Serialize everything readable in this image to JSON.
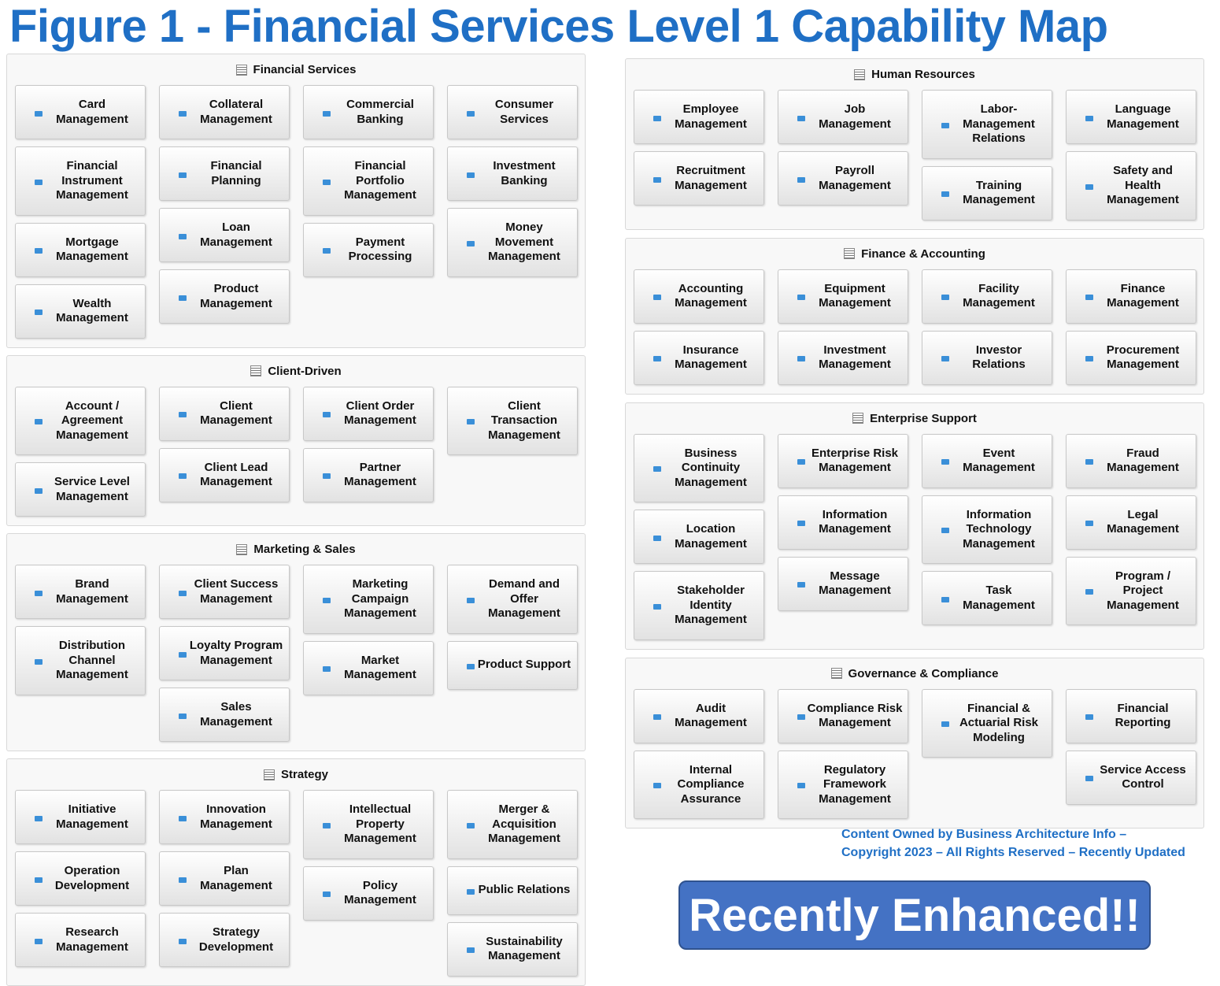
{
  "title": "Figure 1 - Financial Services Level 1 Capability Map",
  "left_groups": [
    {
      "title": "Financial Services",
      "columns": [
        [
          "Card\nManagement",
          "Financial\nInstrument\nManagement",
          "Mortgage\nManagement",
          "Wealth\nManagement"
        ],
        [
          "Collateral\nManagement",
          "Financial\nPlanning",
          "Loan\nManagement",
          "Product\nManagement"
        ],
        [
          "Commercial\nBanking",
          "Financial\nPortfolio\nManagement",
          "Payment\nProcessing"
        ],
        [
          "Consumer\nServices",
          "Investment\nBanking",
          "Money\nMovement\nManagement"
        ]
      ]
    },
    {
      "title": "Client-Driven",
      "columns": [
        [
          "Account /\nAgreement\nManagement",
          "Service Level\nManagement"
        ],
        [
          "Client\nManagement",
          "Client Lead\nManagement"
        ],
        [
          "Client Order\nManagement",
          "Partner\nManagement"
        ],
        [
          "Client\nTransaction\nManagement"
        ]
      ]
    },
    {
      "title": "Marketing & Sales",
      "columns": [
        [
          "Brand\nManagement",
          "Distribution\nChannel\nManagement"
        ],
        [
          "Client Success\nManagement",
          "Loyalty Program\nManagement",
          "Sales\nManagement"
        ],
        [
          "Marketing\nCampaign\nManagement",
          "Market\nManagement"
        ],
        [
          "Demand and\nOffer\nManagement",
          "Product Support"
        ]
      ]
    },
    {
      "title": "Strategy",
      "columns": [
        [
          "Initiative\nManagement",
          "Operation\nDevelopment",
          "Research\nManagement"
        ],
        [
          "Innovation\nManagement",
          "Plan\nManagement",
          "Strategy\nDevelopment"
        ],
        [
          "Intellectual\nProperty\nManagement",
          "Policy\nManagement"
        ],
        [
          "Merger &\nAcquisition\nManagement",
          "Public Relations",
          "Sustainability\nManagement"
        ]
      ]
    }
  ],
  "right_groups": [
    {
      "title": "Human Resources",
      "columns": [
        [
          "Employee\nManagement",
          "Recruitment\nManagement"
        ],
        [
          "Job Management",
          "Payroll\nManagement"
        ],
        [
          "Labor-\nManagement\nRelations",
          "Training\nManagement"
        ],
        [
          "Language\nManagement",
          "Safety and\nHealth\nManagement"
        ]
      ]
    },
    {
      "title": "Finance & Accounting",
      "columns": [
        [
          "Accounting\nManagement",
          "Insurance\nManagement"
        ],
        [
          "Equipment\nManagement",
          "Investment\nManagement"
        ],
        [
          "Facility\nManagement",
          "Investor\nRelations"
        ],
        [
          "Finance\nManagement",
          "Procurement\nManagement"
        ]
      ]
    },
    {
      "title": "Enterprise Support",
      "columns": [
        [
          "Business\nContinuity\nManagement",
          "Location\nManagement",
          "Stakeholder\nIdentity\nManagement"
        ],
        [
          "Enterprise Risk\nManagement",
          "Information\nManagement",
          "Message\nManagement"
        ],
        [
          "Event\nManagement",
          "Information\nTechnology\nManagement",
          "Task\nManagement"
        ],
        [
          "Fraud\nManagement",
          "Legal\nManagement",
          "Program /\nProject\nManagement"
        ]
      ]
    },
    {
      "title": "Governance & Compliance",
      "columns": [
        [
          "Audit\nManagement",
          "Internal\nCompliance\nAssurance"
        ],
        [
          "Compliance Risk\nManagement",
          "Regulatory\nFramework\nManagement"
        ],
        [
          "Financial &\nActuarial Risk\nModeling"
        ],
        [
          "Financial\nReporting",
          "Service Access\nControl"
        ]
      ]
    }
  ],
  "footer": [
    "Content Owned by Business Architecture Info  –",
    "Copyright 2023  – All Rights Reserved – Recently Updated"
  ],
  "badge": "Recently Enhanced!!"
}
